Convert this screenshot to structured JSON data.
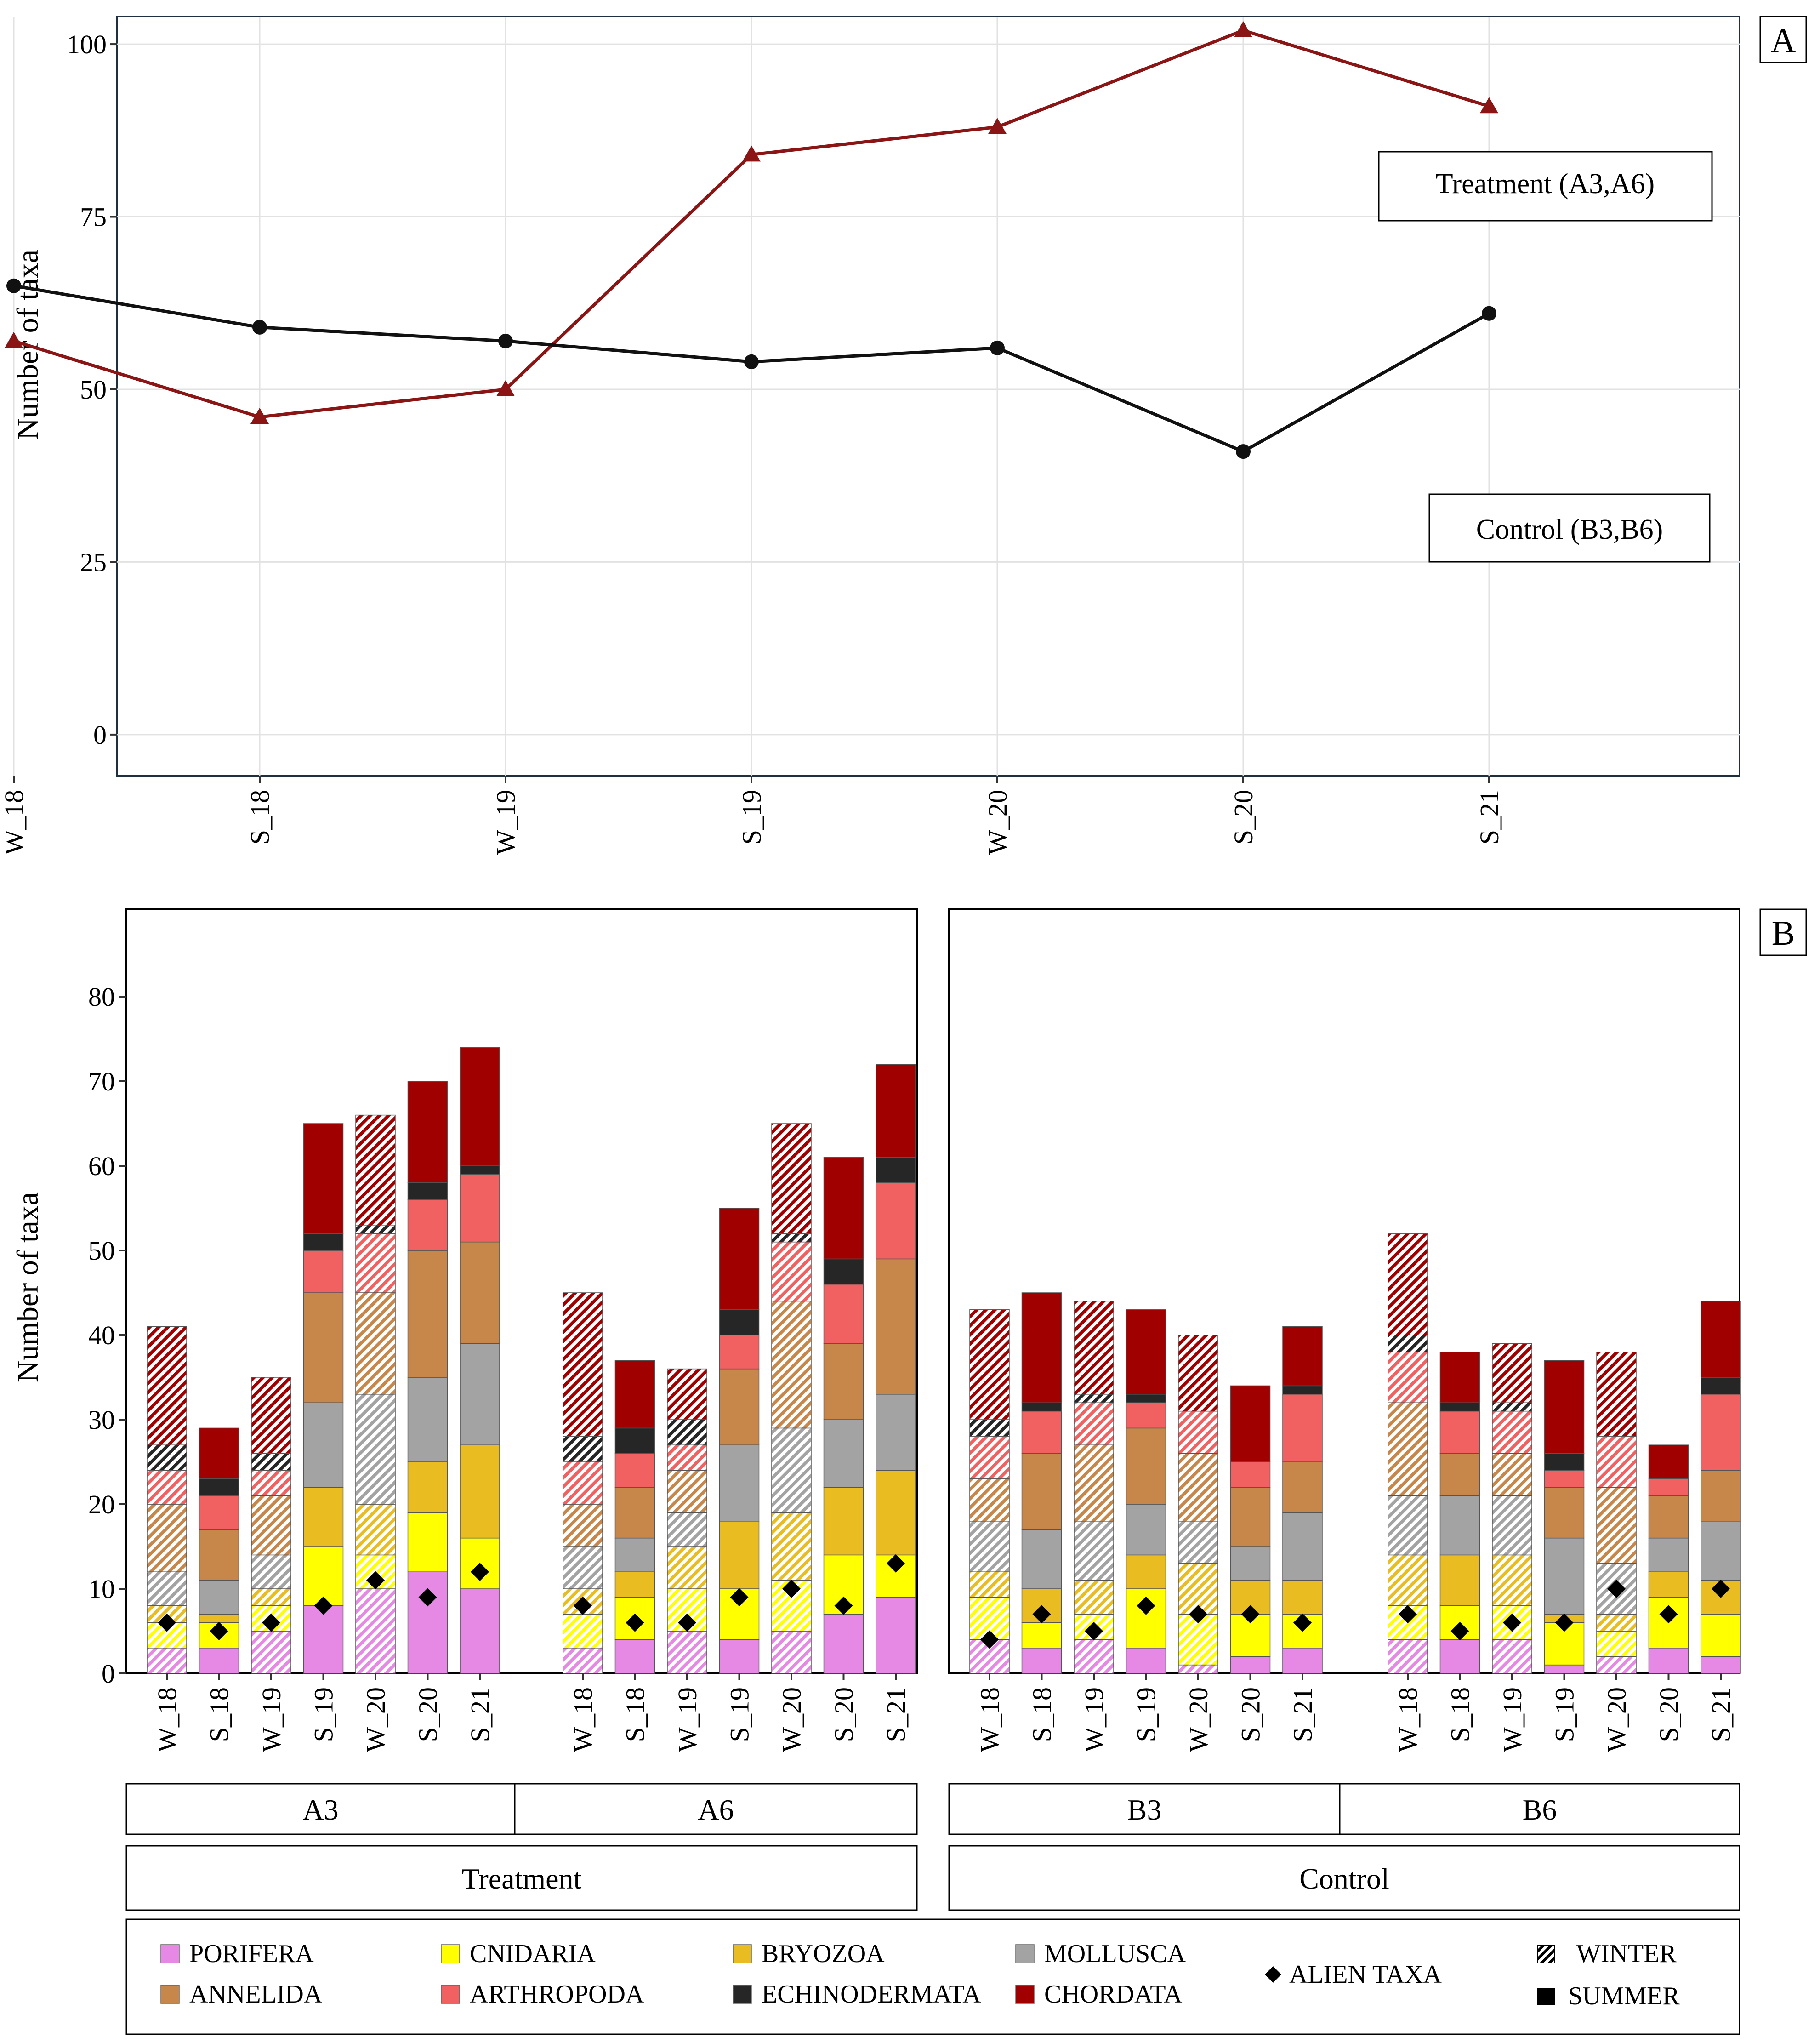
{
  "colors": {
    "PORIFERA": "#e589e5",
    "CNIDARIA": "#ffff00",
    "BRYOZOA": "#e9bd21",
    "MOLLUSCA": "#a3a3a3",
    "ANNELIDA": "#c8874a",
    "ARTHROPODA": "#f26161",
    "ECHINODERMATA": "#262626",
    "CHORDATA": "#a10000",
    "treatment_line": "#8b1414",
    "control_line": "#111111"
  },
  "chart_data": [
    {
      "type": "line",
      "panel_label": "A",
      "ylabel": "Number of taxa",
      "ylim": [
        -6,
        104
      ],
      "yticks": [
        "0",
        "25",
        "50",
        "75",
        "100"
      ],
      "ytick_values": [
        0,
        25,
        50,
        75,
        100
      ],
      "categories": [
        "W_18",
        "S_18",
        "W_19",
        "S_19",
        "W_20",
        "S_20",
        "S_21"
      ],
      "series": [
        {
          "name": "Treatment (A3,A6)",
          "marker": "triangle",
          "values": [
            57,
            46,
            50,
            84,
            88,
            102,
            91
          ]
        },
        {
          "name": "Control (B3,B6)",
          "marker": "circle",
          "values": [
            65,
            59,
            57,
            54,
            56,
            41,
            61
          ]
        }
      ]
    },
    {
      "type": "bar",
      "stacked": true,
      "panel_label": "B",
      "ylabel": "Number of taxa",
      "ylim": [
        0,
        90
      ],
      "yticks": [
        "0",
        "10",
        "20",
        "30",
        "40",
        "50",
        "60",
        "70",
        "80"
      ],
      "ytick_values": [
        0,
        10,
        20,
        30,
        40,
        50,
        60,
        70,
        80
      ],
      "stack_order": [
        "PORIFERA",
        "CNIDARIA",
        "BRYOZOA",
        "MOLLUSCA",
        "ANNELIDA",
        "ARTHROPODA",
        "ECHINODERMATA",
        "CHORDATA"
      ],
      "groups": [
        {
          "name": "Treatment",
          "sites": [
            {
              "name": "A3",
              "bars": [
                {
                  "label": "W_18",
                  "season": "winter",
                  "values": [
                    3,
                    3,
                    2,
                    4,
                    8,
                    4,
                    3,
                    14
                  ],
                  "alien": 6
                },
                {
                  "label": "S_18",
                  "season": "summer",
                  "values": [
                    3,
                    3,
                    1,
                    4,
                    6,
                    4,
                    2,
                    6
                  ],
                  "alien": 5
                },
                {
                  "label": "W_19",
                  "season": "winter",
                  "values": [
                    5,
                    3,
                    2,
                    4,
                    7,
                    3,
                    2,
                    9
                  ],
                  "alien": 6
                },
                {
                  "label": "S_19",
                  "season": "summer",
                  "values": [
                    8,
                    7,
                    7,
                    10,
                    13,
                    5,
                    2,
                    13
                  ],
                  "alien": 8
                },
                {
                  "label": "W_20",
                  "season": "winter",
                  "values": [
                    10,
                    4,
                    6,
                    13,
                    12,
                    7,
                    1,
                    13
                  ],
                  "alien": 11
                },
                {
                  "label": "S_20",
                  "season": "summer",
                  "values": [
                    12,
                    7,
                    6,
                    10,
                    15,
                    6,
                    2,
                    12
                  ],
                  "alien": 9
                },
                {
                  "label": "S_21",
                  "season": "summer",
                  "values": [
                    10,
                    6,
                    11,
                    12,
                    12,
                    8,
                    1,
                    14
                  ],
                  "alien": 12
                }
              ]
            },
            {
              "name": "A6",
              "bars": [
                {
                  "label": "W_18",
                  "season": "winter",
                  "values": [
                    3,
                    4,
                    3,
                    5,
                    5,
                    5,
                    3,
                    17
                  ],
                  "alien": 8
                },
                {
                  "label": "S_18",
                  "season": "summer",
                  "values": [
                    4,
                    5,
                    3,
                    4,
                    6,
                    4,
                    3,
                    8
                  ],
                  "alien": 6
                },
                {
                  "label": "W_19",
                  "season": "winter",
                  "values": [
                    5,
                    5,
                    5,
                    4,
                    5,
                    3,
                    3,
                    6
                  ],
                  "alien": 6
                },
                {
                  "label": "S_19",
                  "season": "summer",
                  "values": [
                    4,
                    6,
                    8,
                    9,
                    9,
                    4,
                    3,
                    12
                  ],
                  "alien": 9
                },
                {
                  "label": "W_20",
                  "season": "winter",
                  "values": [
                    5,
                    6,
                    8,
                    10,
                    15,
                    7,
                    1,
                    13
                  ],
                  "alien": 10
                },
                {
                  "label": "S_20",
                  "season": "summer",
                  "values": [
                    7,
                    7,
                    8,
                    8,
                    9,
                    7,
                    3,
                    12
                  ],
                  "alien": 8
                },
                {
                  "label": "S_21",
                  "season": "summer",
                  "values": [
                    9,
                    5,
                    10,
                    9,
                    16,
                    9,
                    3,
                    11
                  ],
                  "alien": 13
                }
              ]
            }
          ]
        },
        {
          "name": "Control",
          "sites": [
            {
              "name": "B3",
              "bars": [
                {
                  "label": "W_18",
                  "season": "winter",
                  "values": [
                    4,
                    5,
                    3,
                    6,
                    5,
                    5,
                    2,
                    13
                  ],
                  "alien": 4
                },
                {
                  "label": "S_18",
                  "season": "summer",
                  "values": [
                    3,
                    3,
                    4,
                    7,
                    9,
                    5,
                    1,
                    13
                  ],
                  "alien": 7
                },
                {
                  "label": "W_19",
                  "season": "winter",
                  "values": [
                    4,
                    3,
                    4,
                    7,
                    9,
                    5,
                    1,
                    11
                  ],
                  "alien": 5
                },
                {
                  "label": "S_19",
                  "season": "summer",
                  "values": [
                    3,
                    7,
                    4,
                    6,
                    9,
                    3,
                    1,
                    10
                  ],
                  "alien": 8
                },
                {
                  "label": "W_20",
                  "season": "winter",
                  "values": [
                    1,
                    6,
                    6,
                    5,
                    8,
                    5,
                    0,
                    9
                  ],
                  "alien": 7
                },
                {
                  "label": "S_20",
                  "season": "summer",
                  "values": [
                    2,
                    5,
                    4,
                    4,
                    7,
                    3,
                    0,
                    9
                  ],
                  "alien": 7
                },
                {
                  "label": "S_21",
                  "season": "summer",
                  "values": [
                    3,
                    4,
                    4,
                    8,
                    6,
                    8,
                    1,
                    7
                  ],
                  "alien": 6
                }
              ]
            },
            {
              "name": "B6",
              "bars": [
                {
                  "label": "W_18",
                  "season": "winter",
                  "values": [
                    4,
                    4,
                    6,
                    7,
                    11,
                    6,
                    2,
                    12
                  ],
                  "alien": 7
                },
                {
                  "label": "S_18",
                  "season": "summer",
                  "values": [
                    4,
                    4,
                    6,
                    7,
                    5,
                    5,
                    1,
                    6
                  ],
                  "alien": 5
                },
                {
                  "label": "W_19",
                  "season": "winter",
                  "values": [
                    4,
                    4,
                    6,
                    7,
                    5,
                    5,
                    1,
                    7
                  ],
                  "alien": 6
                },
                {
                  "label": "S_19",
                  "season": "summer",
                  "values": [
                    1,
                    5,
                    1,
                    9,
                    6,
                    2,
                    2,
                    11
                  ],
                  "alien": 6
                },
                {
                  "label": "W_20",
                  "season": "winter",
                  "values": [
                    2,
                    3,
                    2,
                    6,
                    9,
                    6,
                    0,
                    10
                  ],
                  "alien": 10
                },
                {
                  "label": "S_20",
                  "season": "summer",
                  "values": [
                    3,
                    6,
                    3,
                    4,
                    5,
                    2,
                    0,
                    4
                  ],
                  "alien": 7
                },
                {
                  "label": "S_21",
                  "season": "summer",
                  "values": [
                    2,
                    5,
                    4,
                    7,
                    6,
                    9,
                    2,
                    9
                  ],
                  "alien": 10
                }
              ]
            }
          ]
        }
      ]
    }
  ],
  "legend": {
    "taxa": [
      "PORIFERA",
      "CNIDARIA",
      "BRYOZOA",
      "MOLLUSCA",
      "ANNELIDA",
      "ARTHROPODA",
      "ECHINODERMATA",
      "CHORDATA"
    ],
    "alien": "ALIEN TAXA",
    "winter": "WINTER",
    "summer": "SUMMER"
  }
}
